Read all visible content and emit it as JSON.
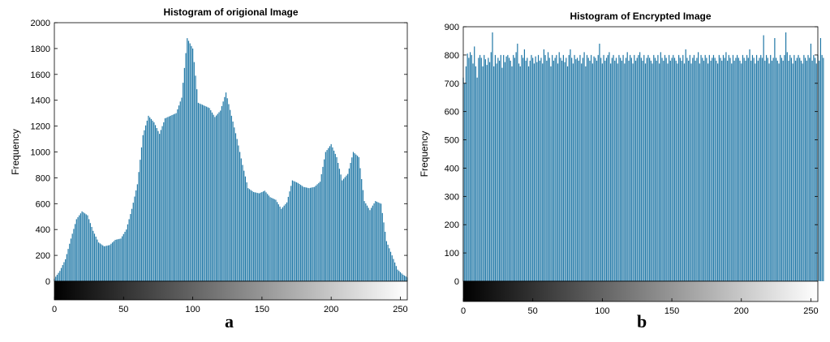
{
  "colors": {
    "bar": "#1f77a6",
    "axis": "#000000"
  },
  "chart_data": [
    {
      "type": "bar",
      "subplot_label": "a",
      "title": "Histogram of origional Image",
      "xlabel": "",
      "ylabel": "Frequency",
      "xlim": [
        0,
        255
      ],
      "ylim": [
        0,
        2000
      ],
      "x_ticks": [
        0,
        50,
        100,
        150,
        200,
        250
      ],
      "y_ticks": [
        0,
        200,
        400,
        600,
        800,
        1000,
        1200,
        1400,
        1600,
        1800,
        2000
      ],
      "colorbar": "grayscale 0-255",
      "x": [
        0,
        4,
        8,
        12,
        16,
        20,
        24,
        28,
        32,
        36,
        40,
        44,
        48,
        52,
        56,
        60,
        64,
        68,
        72,
        76,
        80,
        84,
        88,
        92,
        96,
        100,
        104,
        108,
        112,
        116,
        120,
        124,
        128,
        132,
        136,
        140,
        144,
        148,
        152,
        156,
        160,
        164,
        168,
        172,
        176,
        180,
        184,
        188,
        192,
        196,
        200,
        204,
        208,
        212,
        216,
        220,
        224,
        228,
        232,
        236,
        240,
        244,
        248,
        252,
        255
      ],
      "values": [
        20,
        80,
        170,
        330,
        480,
        540,
        510,
        390,
        300,
        270,
        280,
        320,
        330,
        400,
        560,
        750,
        1130,
        1280,
        1230,
        1140,
        1260,
        1280,
        1300,
        1420,
        1880,
        1800,
        1380,
        1360,
        1340,
        1270,
        1320,
        1460,
        1280,
        1100,
        900,
        720,
        690,
        680,
        700,
        650,
        630,
        560,
        610,
        780,
        760,
        730,
        720,
        730,
        770,
        1000,
        1060,
        960,
        780,
        830,
        1000,
        960,
        620,
        550,
        620,
        600,
        310,
        200,
        90,
        50,
        30
      ]
    },
    {
      "type": "bar",
      "subplot_label": "b",
      "title": "Histogram of Encrypted Image",
      "xlabel": "",
      "ylabel": "Frequency",
      "xlim": [
        0,
        255
      ],
      "ylim": [
        0,
        900
      ],
      "x_ticks": [
        0,
        50,
        100,
        150,
        200,
        250
      ],
      "y_ticks": [
        0,
        100,
        200,
        300,
        400,
        500,
        600,
        700,
        800,
        900
      ],
      "colorbar": "grayscale 0-255",
      "values": [
        720,
        700,
        760,
        805,
        790,
        810,
        800,
        770,
        830,
        760,
        720,
        790,
        800,
        790,
        760,
        800,
        785,
        765,
        790,
        775,
        810,
        880,
        760,
        800,
        770,
        790,
        780,
        800,
        755,
        800,
        775,
        795,
        800,
        790,
        780,
        760,
        800,
        790,
        810,
        840,
        770,
        760,
        800,
        790,
        820,
        780,
        790,
        760,
        780,
        800,
        790,
        770,
        795,
        775,
        800,
        780,
        790,
        770,
        820,
        800,
        780,
        810,
        790,
        760,
        800,
        780,
        790,
        800,
        770,
        810,
        790,
        780,
        800,
        775,
        790,
        760,
        800,
        820,
        790,
        770,
        800,
        785,
        790,
        780,
        800,
        770,
        790,
        810,
        760,
        800,
        790,
        780,
        800,
        770,
        795,
        790,
        780,
        800,
        840,
        790,
        770,
        800,
        780,
        790,
        800,
        810,
        770,
        790,
        800,
        780,
        790,
        770,
        800,
        790,
        780,
        800,
        770,
        790,
        810,
        780,
        800,
        790,
        770,
        800,
        780,
        790,
        800,
        810,
        790,
        780,
        800,
        770,
        790,
        800,
        790,
        780,
        770,
        800,
        790,
        780,
        800,
        770,
        810,
        790,
        780,
        800,
        790,
        770,
        800,
        780,
        790,
        800,
        790,
        780,
        770,
        800,
        790,
        780,
        800,
        770,
        820,
        790,
        780,
        800,
        770,
        790,
        800,
        780,
        790,
        810,
        770,
        800,
        790,
        780,
        800,
        790,
        770,
        800,
        780,
        790,
        800,
        790,
        780,
        770,
        800,
        790,
        780,
        800,
        790,
        810,
        780,
        800,
        790,
        770,
        800,
        780,
        790,
        800,
        790,
        780,
        770,
        800,
        790,
        780,
        800,
        790,
        820,
        780,
        800,
        790,
        770,
        800,
        780,
        790,
        800,
        790,
        870,
        780,
        800,
        790,
        770,
        800,
        780,
        790,
        860,
        790,
        780,
        770,
        800,
        790,
        780,
        800,
        880,
        810,
        780,
        800,
        790,
        770,
        800,
        780,
        790,
        800,
        790,
        780,
        770,
        800,
        790,
        780,
        800,
        790,
        840,
        780,
        800,
        790,
        770,
        800,
        780,
        860,
        800,
        790
      ]
    }
  ]
}
